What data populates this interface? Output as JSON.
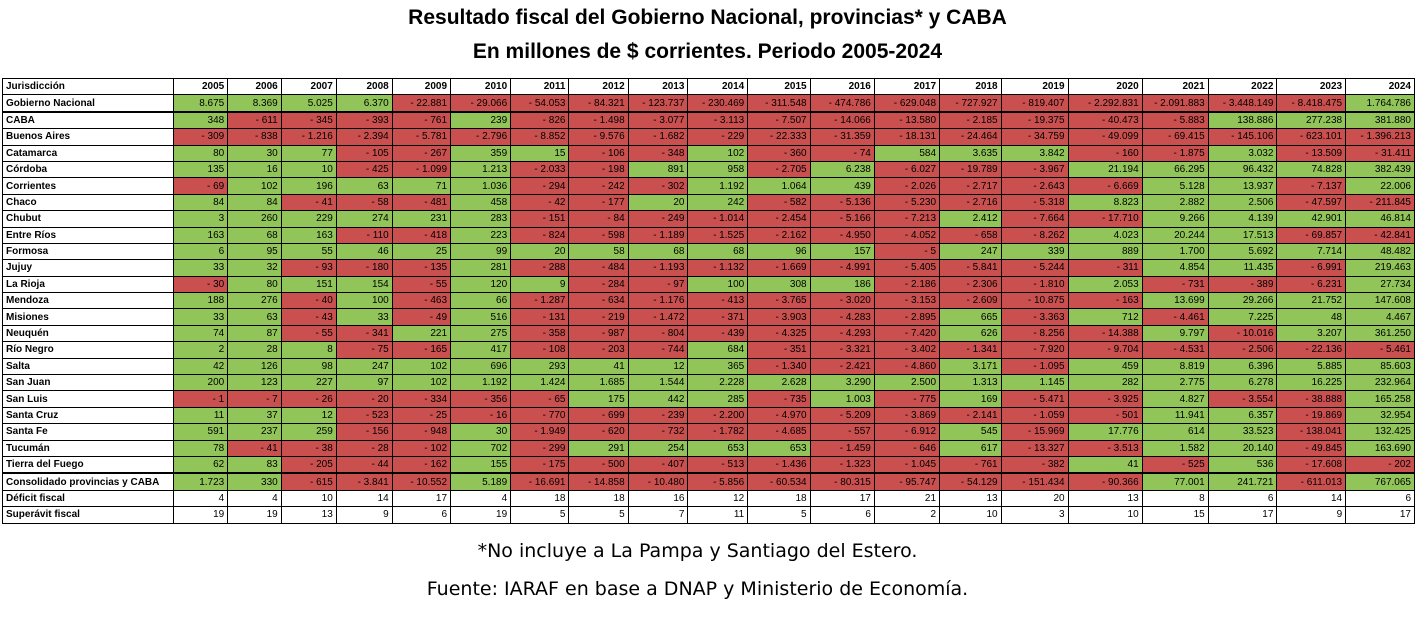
{
  "title": "Resultado fiscal del  Gobierno Nacional, provincias* y CABA",
  "subtitle": "En millones de $ corrientes. Periodo 2005-2024",
  "footnote": "*No incluye a La Pampa y Santiago del Estero.",
  "source": "Fuente: IARAF en base a DNAP y Ministerio de Economía.",
  "colors": {
    "positive": "#92c559",
    "negative": "#c9504f"
  },
  "chart_data": {
    "type": "table",
    "header": [
      "Jurisdicción",
      "2005",
      "2006",
      "2007",
      "2008",
      "2009",
      "2010",
      "2011",
      "2012",
      "2013",
      "2014",
      "2015",
      "2016",
      "2017",
      "2018",
      "2019",
      "2020",
      "2021",
      "2022",
      "2023",
      "2024"
    ],
    "rows": [
      {
        "name": "Gobierno Nacional",
        "values": [
          "8.675",
          "8.369",
          "5.025",
          "6.370",
          "- 22.881",
          "- 29.066",
          "- 54.053",
          "- 84.321",
          "- 123.737",
          "- 230.469",
          "- 311.548",
          "- 474.786",
          "- 629.048",
          "- 727.927",
          "- 819.407",
          "- 2.292.831",
          "- 2.091.883",
          "- 3.448.149",
          "- 8.418.475",
          "1.764.786"
        ]
      },
      {
        "name": "CABA",
        "values": [
          "348",
          "- 611",
          "- 345",
          "- 393",
          "- 761",
          "239",
          "- 826",
          "- 1.498",
          "- 3.077",
          "- 3.113",
          "- 7.507",
          "- 14.066",
          "- 13.580",
          "- 2.185",
          "- 19.375",
          "- 40.473",
          "- 5.883",
          "138.886",
          "277.238",
          "381.880"
        ]
      },
      {
        "name": "Buenos Aires",
        "values": [
          "- 309",
          "- 838",
          "- 1.216",
          "- 2.394",
          "- 5.781",
          "- 2.796",
          "- 8.852",
          "- 9.576",
          "- 1.682",
          "- 229",
          "- 22.333",
          "- 31.359",
          "- 18.131",
          "- 24.464",
          "- 34.759",
          "- 49.099",
          "- 69.415",
          "- 145.106",
          "- 623.101",
          "- 1.396.213"
        ]
      },
      {
        "name": "Catamarca",
        "values": [
          "80",
          "30",
          "77",
          "- 105",
          "- 267",
          "359",
          "15",
          "- 106",
          "- 348",
          "102",
          "- 360",
          "- 74",
          "584",
          "3.635",
          "3.842",
          "- 160",
          "- 1.875",
          "3.032",
          "- 13.509",
          "- 31.411"
        ]
      },
      {
        "name": "Córdoba",
        "values": [
          "135",
          "16",
          "10",
          "- 425",
          "- 1.099",
          "1.213",
          "- 2.033",
          "- 198",
          "891",
          "958",
          "- 2.705",
          "6.238",
          "- 6.027",
          "- 19.789",
          "- 3.967",
          "21.194",
          "66.295",
          "96.432",
          "74.828",
          "382.439"
        ]
      },
      {
        "name": "Corrientes",
        "values": [
          "- 69",
          "102",
          "196",
          "63",
          "71",
          "1.036",
          "- 294",
          "- 242",
          "- 302",
          "1.192",
          "1.064",
          "439",
          "- 2.026",
          "- 2.717",
          "- 2.643",
          "- 6.669",
          "5.128",
          "13.937",
          "- 7.137",
          "22.006"
        ]
      },
      {
        "name": "Chaco",
        "values": [
          "84",
          "84",
          "- 41",
          "- 58",
          "- 481",
          "458",
          "- 42",
          "- 177",
          "20",
          "242",
          "- 582",
          "- 5.136",
          "- 5.230",
          "- 2.716",
          "- 5.318",
          "8.823",
          "2.882",
          "2.506",
          "- 47.597",
          "- 211.845"
        ]
      },
      {
        "name": "Chubut",
        "values": [
          "3",
          "260",
          "229",
          "274",
          "231",
          "283",
          "- 151",
          "- 84",
          "- 249",
          "- 1.014",
          "- 2.454",
          "- 5.166",
          "- 7.213",
          "2.412",
          "- 7.664",
          "- 17.710",
          "9.266",
          "4.139",
          "42.901",
          "46.814"
        ]
      },
      {
        "name": "Entre Ríos",
        "values": [
          "163",
          "68",
          "163",
          "- 110",
          "- 418",
          "223",
          "- 824",
          "- 598",
          "- 1.189",
          "- 1.525",
          "- 2.162",
          "- 4.950",
          "- 4.052",
          "- 658",
          "- 8.262",
          "4.023",
          "20.244",
          "17.513",
          "- 69.857",
          "- 42.841"
        ]
      },
      {
        "name": "Formosa",
        "values": [
          "6",
          "95",
          "55",
          "46",
          "25",
          "99",
          "20",
          "58",
          "68",
          "68",
          "96",
          "157",
          "- 5",
          "247",
          "339",
          "889",
          "1.700",
          "5.692",
          "7.714",
          "48.482"
        ]
      },
      {
        "name": "Jujuy",
        "values": [
          "33",
          "32",
          "- 93",
          "- 180",
          "- 135",
          "281",
          "- 288",
          "- 484",
          "- 1.193",
          "- 1.132",
          "- 1.669",
          "- 4.991",
          "- 5.405",
          "- 5.841",
          "- 5.244",
          "- 311",
          "4.854",
          "11.435",
          "- 6.991",
          "219.463"
        ]
      },
      {
        "name": "La Rioja",
        "values": [
          "- 30",
          "80",
          "151",
          "154",
          "- 55",
          "120",
          "9",
          "- 284",
          "- 97",
          "100",
          "308",
          "186",
          "- 2.186",
          "- 2.306",
          "- 1.810",
          "2.053",
          "- 731",
          "- 389",
          "- 6.231",
          "27.734"
        ]
      },
      {
        "name": "Mendoza",
        "values": [
          "188",
          "276",
          "- 40",
          "100",
          "- 463",
          "66",
          "- 1.287",
          "- 634",
          "- 1.176",
          "- 413",
          "- 3.765",
          "- 3.020",
          "- 3.153",
          "- 2.609",
          "- 10.875",
          "- 163",
          "13.699",
          "29.266",
          "21.752",
          "147.608"
        ]
      },
      {
        "name": "Misiones",
        "values": [
          "33",
          "63",
          "- 43",
          "33",
          "- 49",
          "516",
          "- 131",
          "- 219",
          "- 1.472",
          "- 371",
          "- 3.903",
          "- 4.283",
          "- 2.895",
          "665",
          "- 3.363",
          "712",
          "- 4.461",
          "7.225",
          "48",
          "4.467"
        ]
      },
      {
        "name": "Neuquén",
        "values": [
          "74",
          "87",
          "- 55",
          "- 341",
          "221",
          "275",
          "- 358",
          "- 987",
          "- 804",
          "- 439",
          "- 4.325",
          "- 4.293",
          "- 7.420",
          "626",
          "- 8.256",
          "- 14.388",
          "9.797",
          "- 10.016",
          "3.207",
          "361.250"
        ]
      },
      {
        "name": "Río Negro",
        "values": [
          "2",
          "28",
          "8",
          "- 75",
          "- 165",
          "417",
          "- 108",
          "- 203",
          "- 744",
          "684",
          "- 351",
          "- 3.321",
          "- 3.402",
          "- 1.341",
          "- 7.920",
          "- 9.704",
          "- 4.531",
          "- 2.506",
          "- 22.136",
          "- 5.461"
        ]
      },
      {
        "name": "Salta",
        "values": [
          "42",
          "126",
          "98",
          "247",
          "102",
          "696",
          "293",
          "41",
          "12",
          "365",
          "- 1.340",
          "- 2.421",
          "- 4.860",
          "3.171",
          "- 1.095",
          "459",
          "8.819",
          "6.396",
          "5.885",
          "85.603"
        ]
      },
      {
        "name": "San Juan",
        "values": [
          "200",
          "123",
          "227",
          "97",
          "102",
          "1.192",
          "1.424",
          "1.685",
          "1.544",
          "2.228",
          "2.628",
          "3.290",
          "2.500",
          "1.313",
          "1.145",
          "282",
          "2.775",
          "6.278",
          "16.225",
          "232.964"
        ]
      },
      {
        "name": "San Luis",
        "values": [
          "- 1",
          "- 7",
          "- 26",
          "- 20",
          "- 334",
          "- 356",
          "- 65",
          "175",
          "442",
          "285",
          "- 735",
          "1.003",
          "- 775",
          "169",
          "- 5.471",
          "- 3.925",
          "4.827",
          "- 3.554",
          "- 38.888",
          "165.258"
        ]
      },
      {
        "name": "Santa Cruz",
        "values": [
          "11",
          "37",
          "12",
          "- 523",
          "- 25",
          "- 16",
          "- 770",
          "- 699",
          "- 239",
          "- 2.200",
          "- 4.970",
          "- 5.209",
          "- 3.869",
          "- 2.141",
          "- 1.059",
          "- 501",
          "11.941",
          "6.357",
          "- 19.869",
          "32.954"
        ]
      },
      {
        "name": "Santa Fe",
        "values": [
          "591",
          "237",
          "259",
          "- 156",
          "- 948",
          "30",
          "- 1.949",
          "- 620",
          "- 732",
          "- 1.782",
          "- 4.685",
          "- 557",
          "- 6.912",
          "545",
          "- 15.969",
          "17.776",
          "614",
          "33.523",
          "- 138.041",
          "132.425"
        ]
      },
      {
        "name": "Tucumán",
        "values": [
          "78",
          "- 41",
          "- 38",
          "- 28",
          "- 102",
          "702",
          "- 299",
          "291",
          "254",
          "653",
          "653",
          "- 1.459",
          "- 646",
          "617",
          "- 13.327",
          "- 3.513",
          "1.582",
          "20.140",
          "- 49.845",
          "163.690"
        ]
      },
      {
        "name": "Tierra del Fuego",
        "values": [
          "62",
          "83",
          "- 205",
          "- 44",
          "- 162",
          "155",
          "- 175",
          "- 500",
          "- 407",
          "- 513",
          "- 1.436",
          "- 1.323",
          "- 1.045",
          "- 761",
          "- 382",
          "41",
          "- 525",
          "536",
          "- 17.608",
          "- 202"
        ]
      },
      {
        "name": "Consolidado provincias y CABA",
        "values": [
          "1.723",
          "330",
          "- 615",
          "- 3.841",
          "- 10.552",
          "5.189",
          "- 16.691",
          "- 14.858",
          "- 10.480",
          "- 5.856",
          "- 60.534",
          "- 80.315",
          "- 95.747",
          "- 54.129",
          "- 151.434",
          "- 90.366",
          "77.001",
          "241.721",
          "- 611.013",
          "767.065"
        ]
      },
      {
        "name": "Déficit fiscal",
        "values": [
          "4",
          "4",
          "10",
          "14",
          "17",
          "4",
          "18",
          "18",
          "16",
          "12",
          "18",
          "17",
          "21",
          "13",
          "20",
          "13",
          "8",
          "6",
          "14",
          "6"
        ],
        "plain": true
      },
      {
        "name": "Superávit fiscal",
        "values": [
          "19",
          "19",
          "13",
          "9",
          "6",
          "19",
          "5",
          "5",
          "7",
          "11",
          "5",
          "6",
          "2",
          "10",
          "3",
          "10",
          "15",
          "17",
          "9",
          "17"
        ],
        "plain": true
      }
    ]
  }
}
